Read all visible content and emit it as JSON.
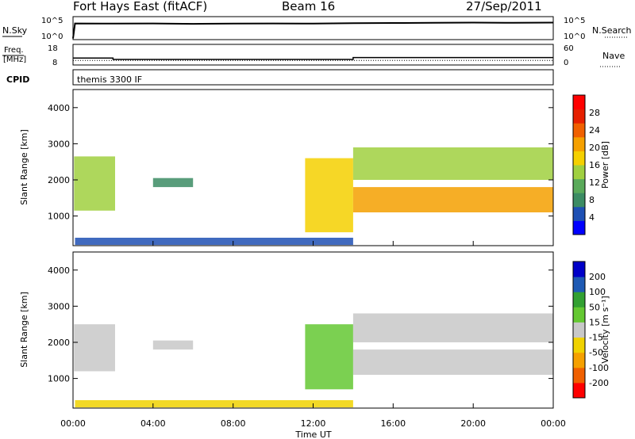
{
  "header": {
    "station": "Fort Hays East (fitACF)",
    "beam": "Beam 16",
    "date": "27/Sep/2011"
  },
  "colors": {
    "power": [
      "#0000ff",
      "#1e50b4",
      "#3c8c64",
      "#5aaa5a",
      "#a0d040",
      "#f5d000",
      "#f5a000",
      "#f06000",
      "#e62000",
      "#ff0000"
    ],
    "velocity": [
      "#0000c8",
      "#1e5ab4",
      "#32a032",
      "#64c832",
      "#c8c8c8",
      "#f0d200",
      "#f5a000",
      "#f06000",
      "#ff0000"
    ]
  },
  "chart_data": [
    {
      "type": "line",
      "name": "sky-noise",
      "left_label": "N.Sky",
      "right_label": "N.Search",
      "y_ticks_left": [
        "10^5",
        "10^0"
      ],
      "y_ticks_right": [
        "10^5",
        "10^0"
      ],
      "x": [
        0,
        0.1,
        2,
        4,
        6,
        8,
        10,
        12,
        14,
        16,
        18,
        20,
        22,
        24
      ],
      "y": [
        0.1,
        3.6,
        3.55,
        3.6,
        3.5,
        3.55,
        3.6,
        3.55,
        3.65,
        3.7,
        3.75,
        3.8,
        3.75,
        3.8
      ],
      "ylim": [
        0,
        5
      ]
    },
    {
      "type": "line",
      "name": "frequency",
      "left_label": "Freq. [MHz]",
      "right_label": "Nave",
      "y_ticks_left": [
        "18",
        "8"
      ],
      "y_ticks_right": [
        "60",
        "0"
      ],
      "freq_steps": [
        [
          0,
          11.2
        ],
        [
          2,
          11.2
        ],
        [
          2,
          10.5
        ],
        [
          14,
          10.5
        ],
        [
          14,
          11.5
        ],
        [
          24,
          11.5
        ]
      ],
      "nave": [
        [
          0,
          12
        ],
        [
          24,
          12
        ]
      ],
      "ylim_freq": [
        8,
        18
      ],
      "ylim_nave": [
        0,
        60
      ]
    },
    {
      "type": "table",
      "name": "cpid",
      "label": "CPID",
      "text": "themis 3300 IF"
    },
    {
      "type": "heatmap",
      "name": "power",
      "ylabel": "Slant Range [km]",
      "yticks": [
        "1000",
        "2000",
        "3000",
        "4000"
      ],
      "ylim": [
        180,
        4500
      ],
      "colorbar_label": "Power [dB]",
      "colorbar_ticks": [
        "28",
        "24",
        "20",
        "16",
        "12",
        "8",
        "4"
      ],
      "value_range": [
        0,
        30
      ],
      "regions": [
        {
          "t": [
            0.05,
            2.1
          ],
          "r": [
            1150,
            2650
          ],
          "v": 14
        },
        {
          "t": [
            4.0,
            6.0
          ],
          "r": [
            1800,
            2050
          ],
          "v": 6
        },
        {
          "t": [
            11.6,
            14.0
          ],
          "r": [
            550,
            2600
          ],
          "v": 16
        },
        {
          "t": [
            14.0,
            24.0
          ],
          "r": [
            1100,
            1800
          ],
          "v": 20
        },
        {
          "t": [
            14.0,
            24.0
          ],
          "r": [
            2000,
            2900
          ],
          "v": 12
        },
        {
          "t": [
            0.1,
            14.0
          ],
          "r": [
            200,
            400
          ],
          "v": 5
        }
      ]
    },
    {
      "type": "heatmap",
      "name": "velocity",
      "ylabel": "Slant Range [km]",
      "yticks": [
        "1000",
        "2000",
        "3000",
        "4000"
      ],
      "ylim": [
        180,
        4500
      ],
      "colorbar_label": "Velocity [m s⁻¹]",
      "colorbar_ticks": [
        "200",
        "100",
        "50",
        "15",
        "-15",
        "-50",
        "-100",
        "-200"
      ],
      "value_range": [
        -250,
        250
      ],
      "regions": [
        {
          "t": [
            0.05,
            2.1
          ],
          "r": [
            1200,
            2500
          ],
          "v": 0
        },
        {
          "t": [
            4.0,
            6.0
          ],
          "r": [
            1800,
            2050
          ],
          "v": 0
        },
        {
          "t": [
            11.6,
            14.0
          ],
          "r": [
            700,
            2500
          ],
          "v": 30
        },
        {
          "t": [
            14.0,
            24.0
          ],
          "r": [
            1100,
            1800
          ],
          "v": 0
        },
        {
          "t": [
            14.0,
            24.0
          ],
          "r": [
            2000,
            2800
          ],
          "v": 0
        },
        {
          "t": [
            0.1,
            14.0
          ],
          "r": [
            200,
            400
          ],
          "v": -60
        }
      ]
    }
  ],
  "x_axis": {
    "label": "Time UT",
    "ticks": [
      "00:00",
      "04:00",
      "08:00",
      "12:00",
      "16:00",
      "20:00",
      "00:00"
    ],
    "range_hours": [
      0,
      24
    ]
  }
}
